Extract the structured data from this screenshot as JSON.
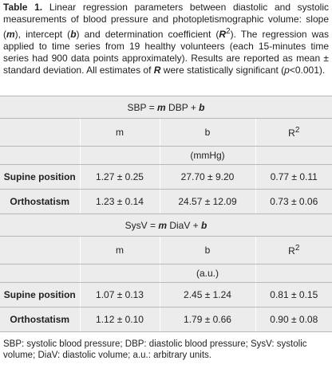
{
  "caption": [
    "Table 1.",
    " Linear regression parameters between diastolic and systolic measurements of blood pressure and photopletismographic volume: slope (",
    "m",
    "), intercept (",
    "b",
    ") and determination coefficient (",
    "R",
    "2",
    "). The regression was applied to time series from 19 healthy volunteers (each 15-minutes time series had 900 data points approximately). Results are reported as mean ± standard deviation. All estimates of ",
    "R",
    " were statistically significant (",
    "p",
    "<0.001)."
  ],
  "table": {
    "blocks": [
      {
        "equation": [
          "SBP = ",
          "m",
          " DBP + ",
          "b"
        ],
        "headers": [
          "m",
          "b",
          [
            "R",
            "2"
          ]
        ],
        "unit": "(mmHg)",
        "rows": [
          [
            "Supine position",
            "1.27 ± 0.25",
            "27.70 ± 9.20",
            "0.77 ± 0.11"
          ],
          [
            "Orthostatism",
            "1.23 ± 0.14",
            "24.57 ± 12.09",
            "0.73 ± 0.06"
          ]
        ]
      },
      {
        "equation": [
          "SysV = ",
          "m",
          " DiaV + ",
          "b"
        ],
        "headers": [
          "m",
          "b",
          [
            "R",
            "2"
          ]
        ],
        "unit": "(a.u.)",
        "rows": [
          [
            "Supine position",
            "1.07 ± 0.13",
            "2.45 ± 1.24",
            "0.81 ± 0.15"
          ],
          [
            "Orthostatism",
            "1.12 ± 0.10",
            "1.79 ± 0.66",
            "0.90 ± 0.08"
          ]
        ]
      }
    ]
  },
  "footer": "SBP: systolic blood pressure; DBP: diastolic blood pressure; SysV: systolic volume; DiaV: diastolic volume; a.u.: arbitrary units."
}
